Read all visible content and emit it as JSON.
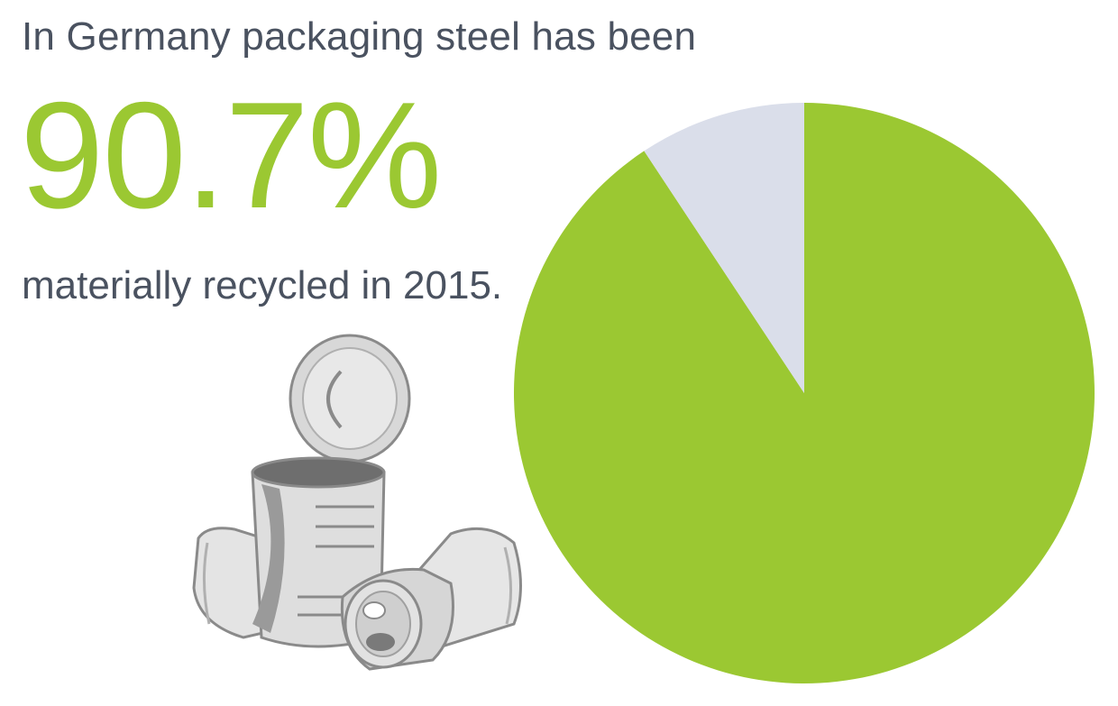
{
  "texts": {
    "headline": "In Germany packaging steel has been",
    "big_value": "90.7%",
    "subline": "materially recycled in 2015."
  },
  "colors": {
    "accent": "#9bc832",
    "remainder": "#dadeea",
    "text": "#4a5260"
  },
  "illustration": {
    "icon": "steel-cans-icon"
  },
  "chart_data": {
    "type": "pie",
    "title": "",
    "slices": [
      {
        "label": "",
        "value": 90.7,
        "color": "#9bc832"
      },
      {
        "label": "",
        "value": 9.3,
        "color": "#dadeea"
      }
    ],
    "legend": "none"
  }
}
